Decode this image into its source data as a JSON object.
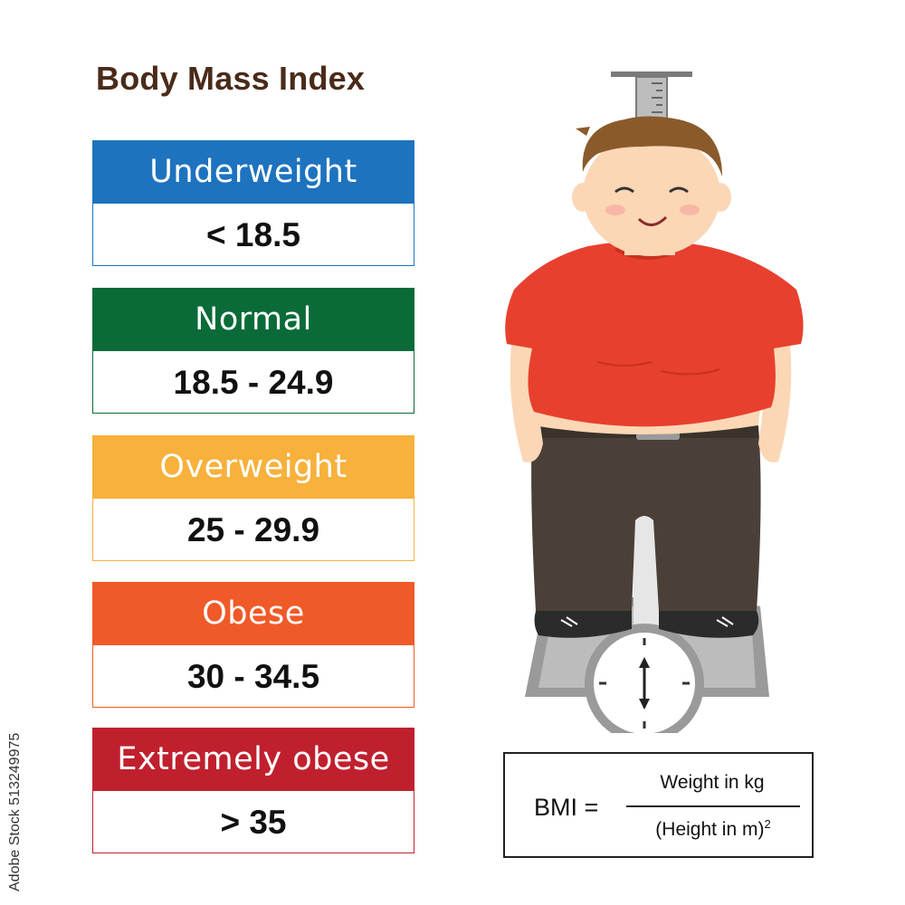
{
  "title": "Body Mass Index",
  "categories": [
    {
      "label": "Underweight",
      "range": "< 18.5",
      "color": "#1e73be"
    },
    {
      "label": "Normal",
      "range": "18.5 - 24.9",
      "color": "#0b6b38"
    },
    {
      "label": "Overweight",
      "range": "25 - 29.9",
      "color": "#f7b13c"
    },
    {
      "label": "Obese",
      "range": "30 - 34.5",
      "color": "#f05a28"
    },
    {
      "label": "Extremely obese",
      "range": "> 35",
      "color": "#c0202e"
    }
  ],
  "formula": {
    "lhs": "BMI =",
    "numerator": "Weight in kg",
    "denominator": "(Height in m)",
    "exponent": "2"
  },
  "stock_id": "513249975",
  "stock_watermark": "Adobe Stock",
  "illustration": {
    "shirt_color": "#e8402e",
    "pants_color": "#4a4038",
    "hair_color": "#8a5a2b",
    "skin_color": "#fbd7b6"
  }
}
